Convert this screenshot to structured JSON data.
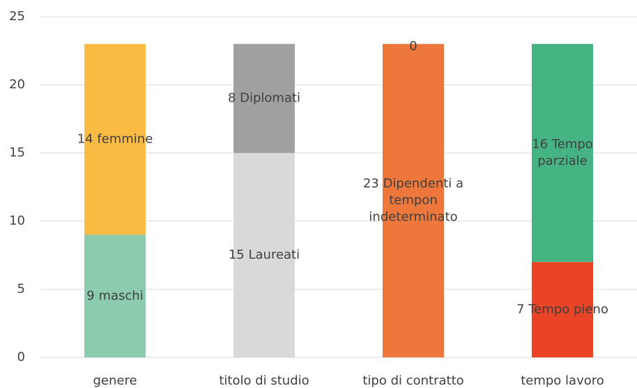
{
  "chart_data": {
    "type": "stacked_bar",
    "categories": [
      "genere",
      "titolo di studio",
      "tipo di contratto",
      "tempo lavoro"
    ],
    "series": [
      {
        "colors": [
          "#8ccbad",
          "#d9d9d9",
          "#ee773b",
          "#e94426"
        ],
        "values": [
          9,
          15,
          23,
          7
        ],
        "value_labels": [
          "9 maschi",
          "15 Laureati",
          "23 Dipendenti a tempon indeterminato",
          "7 Tempo pieno"
        ]
      },
      {
        "colors": [
          "#f9bb43",
          "#a0a09e",
          "#ee773b",
          "#46b482"
        ],
        "values": [
          14,
          8,
          0,
          16
        ],
        "value_labels": [
          "14 femmine",
          "8 Diplomati",
          "0",
          "16 Tempo parziale"
        ]
      }
    ],
    "ylim": [
      0,
      25
    ],
    "yticks": [
      0,
      5,
      10,
      15,
      20,
      25
    ],
    "grid": true
  }
}
